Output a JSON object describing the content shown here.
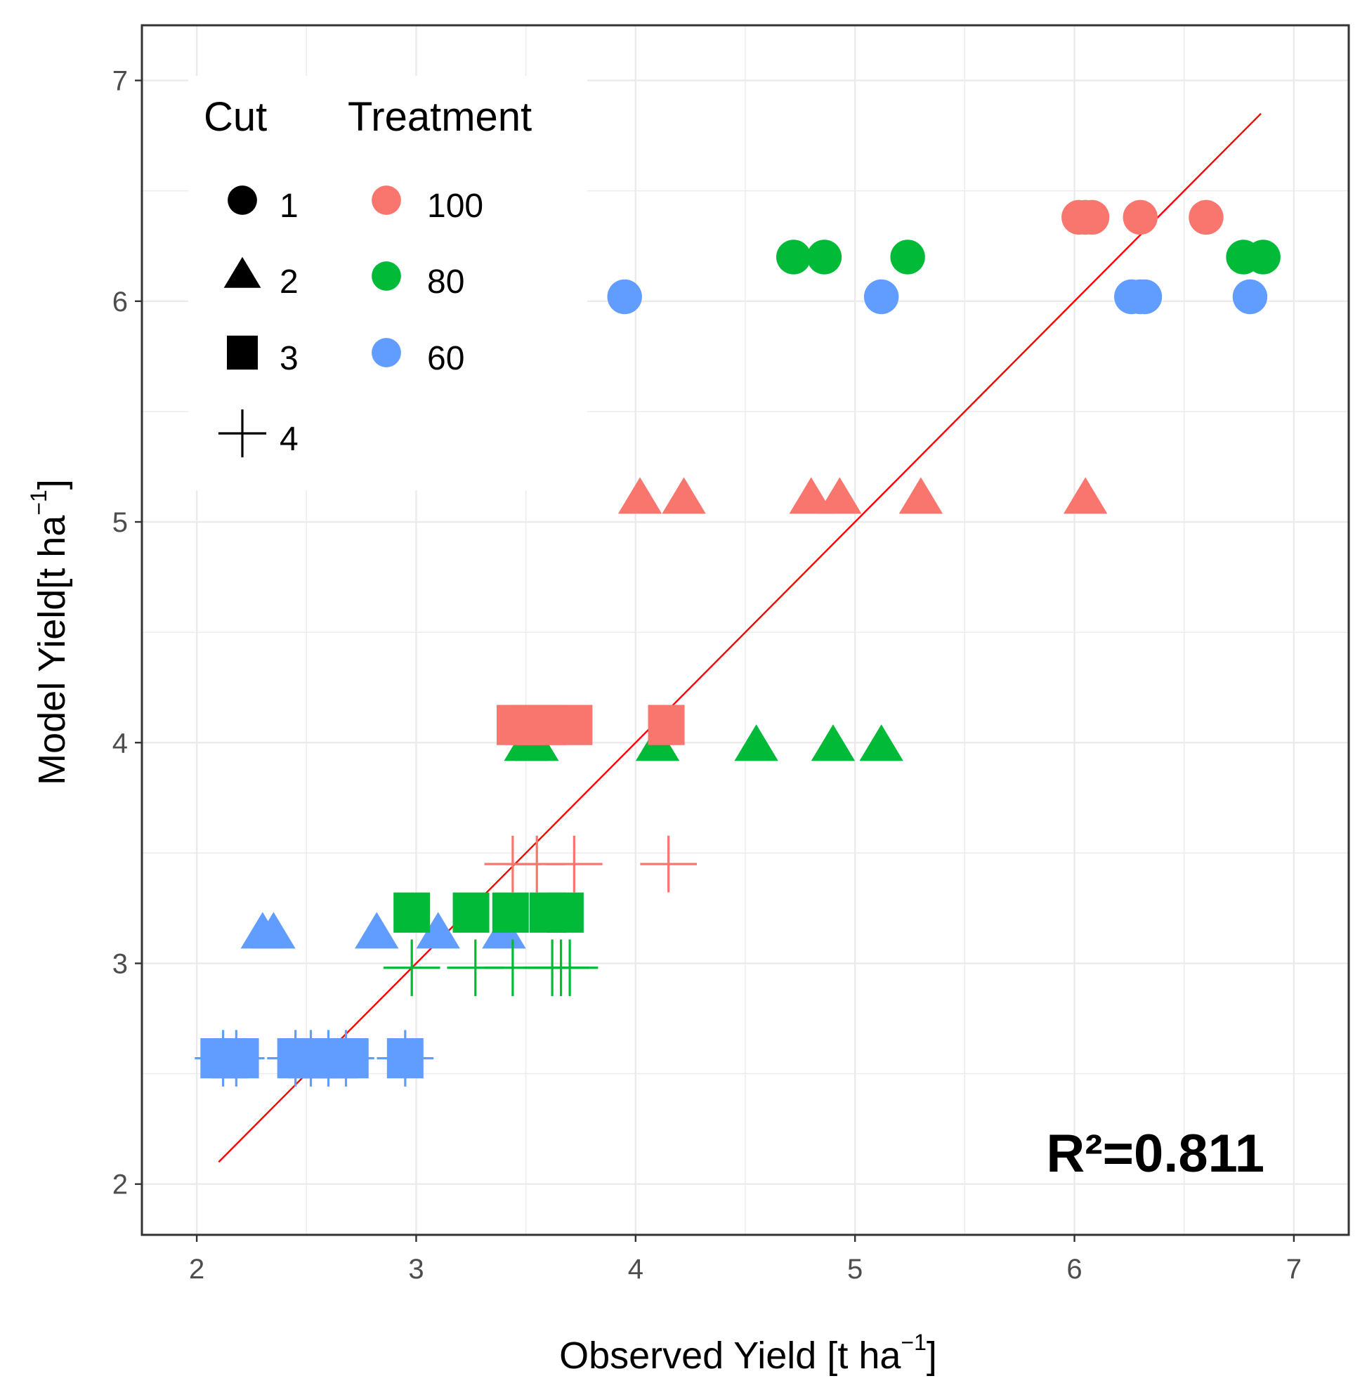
{
  "chart_data": {
    "type": "scatter",
    "xlabel": "Observed Yield [t ha",
    "xlabel_sup": "−1",
    "xlabel_close": "]",
    "ylabel": "Model Yield[t ha",
    "ylabel_sup": "−1",
    "ylabel_close": "]",
    "xlim": [
      1.75,
      7.25
    ],
    "ylim": [
      1.77,
      7.25
    ],
    "x_ticks": [
      2,
      3,
      4,
      5,
      6,
      7
    ],
    "y_ticks": [
      2,
      3,
      4,
      5,
      6,
      7
    ],
    "grid": true,
    "annotation": "R²=0.811",
    "fit_line": {
      "x": [
        2.1,
        6.85
      ],
      "y": [
        2.1,
        6.85
      ],
      "color": "#ff0000"
    },
    "legend": {
      "placement": "top-left",
      "cut_title": "Cut",
      "cut_entries": [
        {
          "label": "1",
          "shape": "circle"
        },
        {
          "label": "2",
          "shape": "triangle"
        },
        {
          "label": "3",
          "shape": "square"
        },
        {
          "label": "4",
          "shape": "plus"
        }
      ],
      "treatment_title": "Treatment",
      "treatment_entries": [
        {
          "label": "100",
          "color": "#f8766d"
        },
        {
          "label": "80",
          "color": "#00ba38"
        },
        {
          "label": "60",
          "color": "#619cff"
        }
      ]
    },
    "series": [
      {
        "cut": "1",
        "treatment": "100",
        "shape": "circle",
        "color": "#f8766d",
        "y": 6.38,
        "x": [
          6.02,
          6.05,
          6.08,
          6.3,
          6.6
        ]
      },
      {
        "cut": "1",
        "treatment": "80",
        "shape": "circle",
        "color": "#00ba38",
        "y": 6.2,
        "x": [
          4.72,
          4.86,
          5.24,
          6.77,
          6.86
        ]
      },
      {
        "cut": "1",
        "treatment": "60",
        "shape": "circle",
        "color": "#619cff",
        "y": 6.02,
        "x": [
          3.95,
          5.12,
          6.26,
          6.3,
          6.32,
          6.8
        ]
      },
      {
        "cut": "2",
        "treatment": "100",
        "shape": "triangle",
        "color": "#f8766d",
        "y": 5.1,
        "x": [
          4.02,
          4.22,
          4.8,
          4.93,
          5.3,
          6.05
        ]
      },
      {
        "cut": "2",
        "treatment": "80",
        "shape": "triangle",
        "color": "#00ba38",
        "y": 3.98,
        "x": [
          3.5,
          3.55,
          4.1,
          4.55,
          4.9,
          5.12
        ]
      },
      {
        "cut": "2",
        "treatment": "60",
        "shape": "triangle",
        "color": "#619cff",
        "y": 3.13,
        "x": [
          2.3,
          2.35,
          2.82,
          3.1,
          3.4
        ]
      },
      {
        "cut": "3",
        "treatment": "100",
        "shape": "square",
        "color": "#f8766d",
        "y": 4.08,
        "x": [
          3.45,
          3.5,
          3.55,
          3.6,
          3.72,
          4.14
        ]
      },
      {
        "cut": "3",
        "treatment": "80",
        "shape": "square",
        "color": "#00ba38",
        "y": 3.23,
        "x": [
          2.98,
          3.25,
          3.43,
          3.6,
          3.68
        ]
      },
      {
        "cut": "3",
        "treatment": "60",
        "shape": "square",
        "color": "#619cff",
        "y": 2.57,
        "x": [
          2.1,
          2.15,
          2.2,
          2.45,
          2.5,
          2.55,
          2.6,
          2.65,
          2.7,
          2.95
        ]
      },
      {
        "cut": "4",
        "treatment": "100",
        "shape": "plus",
        "color": "#f8766d",
        "y": 3.45,
        "x": [
          3.44,
          3.55,
          3.72,
          4.15
        ]
      },
      {
        "cut": "4",
        "treatment": "80",
        "shape": "plus",
        "color": "#00ba38",
        "y": 2.98,
        "x": [
          2.98,
          3.27,
          3.44,
          3.62,
          3.66,
          3.7
        ]
      },
      {
        "cut": "4",
        "treatment": "60",
        "shape": "plus",
        "color": "#619cff",
        "y": 2.57,
        "x": [
          2.12,
          2.18,
          2.45,
          2.52,
          2.6,
          2.68,
          2.95
        ]
      }
    ]
  }
}
